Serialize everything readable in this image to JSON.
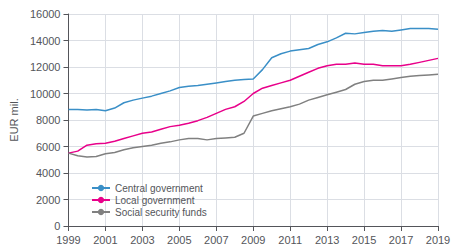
{
  "chart_data": {
    "type": "line",
    "ylabel": "EUR mil.",
    "x": [
      1999,
      1999.5,
      2000,
      2000.5,
      2001,
      2001.5,
      2002,
      2002.5,
      2003,
      2003.5,
      2004,
      2004.5,
      2005,
      2005.5,
      2006,
      2006.5,
      2007,
      2007.5,
      2008,
      2008.5,
      2009,
      2009.5,
      2010,
      2010.5,
      2011,
      2011.5,
      2012,
      2012.5,
      2013,
      2013.5,
      2014,
      2014.5,
      2015,
      2015.5,
      2016,
      2016.5,
      2017,
      2017.5,
      2018,
      2018.5,
      2019
    ],
    "series": [
      {
        "name": "Central government",
        "color": "#3a8fc7",
        "values": [
          8800,
          8800,
          8750,
          8800,
          8700,
          8900,
          9300,
          9500,
          9650,
          9800,
          10000,
          10200,
          10450,
          10550,
          10600,
          10700,
          10800,
          10900,
          11000,
          11050,
          11100,
          11800,
          12700,
          13000,
          13200,
          13300,
          13400,
          13700,
          13900,
          14200,
          14550,
          14500,
          14600,
          14700,
          14750,
          14700,
          14800,
          14900,
          14900,
          14900,
          14850
        ]
      },
      {
        "name": "Local government",
        "color": "#e8008a",
        "values": [
          5500,
          5650,
          6100,
          6200,
          6250,
          6400,
          6600,
          6800,
          7000,
          7100,
          7300,
          7500,
          7600,
          7750,
          7950,
          8200,
          8500,
          8800,
          9000,
          9400,
          10000,
          10400,
          10600,
          10800,
          11000,
          11300,
          11600,
          11900,
          12100,
          12200,
          12200,
          12300,
          12200,
          12200,
          12100,
          12100,
          12100,
          12200,
          12350,
          12500,
          12650
        ]
      },
      {
        "name": "Social security funds",
        "color": "#808080",
        "values": [
          5500,
          5300,
          5200,
          5250,
          5450,
          5550,
          5750,
          5900,
          6000,
          6100,
          6250,
          6350,
          6500,
          6600,
          6600,
          6500,
          6600,
          6650,
          6700,
          7000,
          8300,
          8500,
          8700,
          8850,
          9000,
          9200,
          9500,
          9700,
          9900,
          10100,
          10300,
          10700,
          10900,
          11000,
          11000,
          11100,
          11200,
          11300,
          11350,
          11400,
          11450
        ]
      }
    ],
    "xlim": [
      1999,
      2019
    ],
    "xticks": [
      1999,
      2001,
      2003,
      2005,
      2007,
      2009,
      2011,
      2013,
      2015,
      2017,
      2019
    ],
    "ylim": [
      0,
      16000
    ],
    "yticks": [
      0,
      2000,
      4000,
      6000,
      8000,
      10000,
      12000,
      14000,
      16000
    ],
    "grid": true,
    "legend": "lower left"
  }
}
